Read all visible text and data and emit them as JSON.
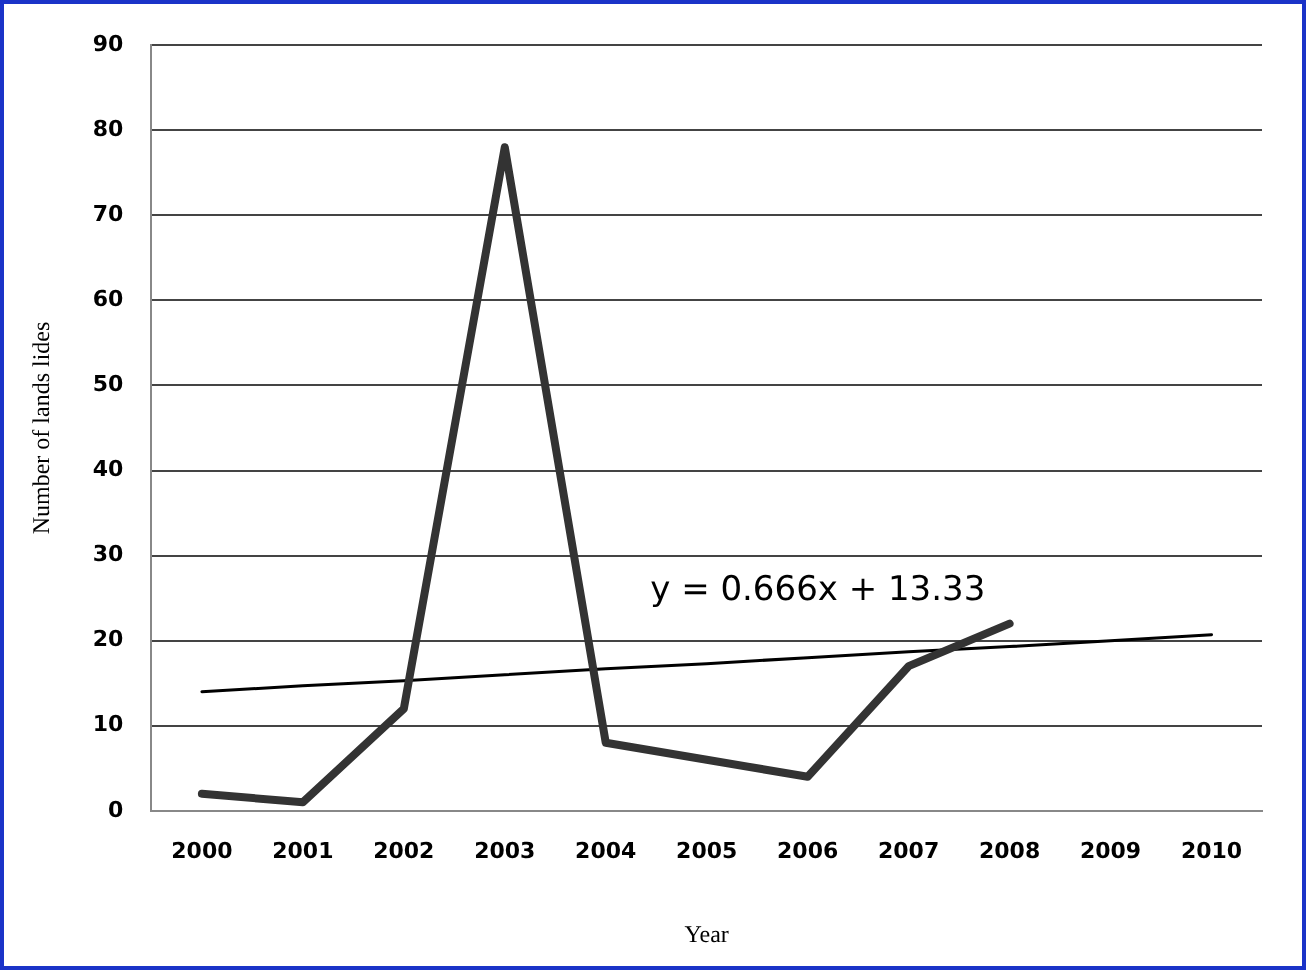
{
  "chart_data": {
    "type": "line",
    "xlabel": "Year",
    "ylabel": "Number of lands lides",
    "categories": [
      "2000",
      "2001",
      "2002",
      "2003",
      "2004",
      "2005",
      "2006",
      "2007",
      "2008",
      "2009",
      "2010"
    ],
    "series": [
      {
        "color": "#333333",
        "values": [
          2,
          1,
          12,
          78,
          8,
          6,
          4,
          17,
          22,
          null,
          null
        ]
      },
      {
        "type": "line",
        "color": "#000000",
        "values": [
          14,
          14.7,
          15.3,
          16,
          16.7,
          17.3,
          18,
          18.7,
          19.3,
          20,
          20.7
        ]
      }
    ],
    "ylim": [
      0,
      90
    ],
    "yticks": [
      0,
      10,
      20,
      30,
      40,
      50,
      60,
      70,
      80,
      90
    ],
    "grid": "y",
    "legend": false,
    "marker": "none",
    "annotations": [
      "y = 0.666x + 13.33"
    ]
  }
}
